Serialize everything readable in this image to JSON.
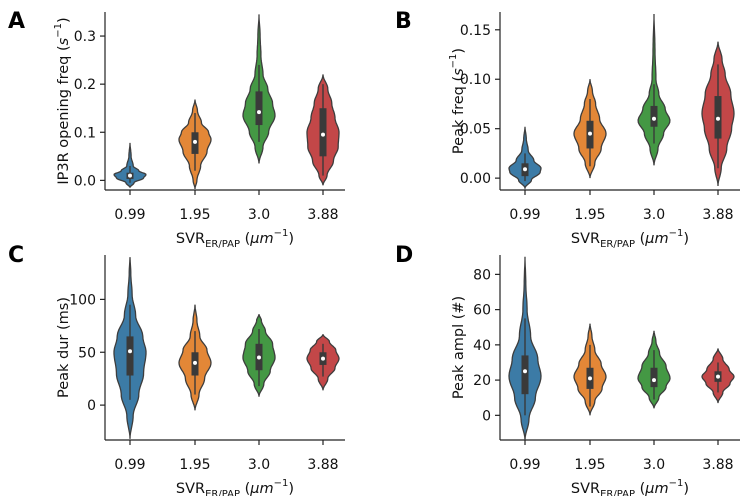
{
  "colors": [
    "#3274a1",
    "#e1812c",
    "#3a923a",
    "#c03d3e"
  ],
  "categories": [
    "0.99",
    "1.95",
    "3.0",
    "3.88"
  ],
  "panels": [
    {
      "letter": "A",
      "ylabel_pre": "IP3R opening freq (",
      "ylabel_unit": "s",
      "ylabel_sup": "−1",
      "ylabel_post": ")",
      "xlabel_main": "SVR",
      "xlabel_sub": "ER/PAP",
      "xlabel_unit": "μm",
      "xlabel_sup": "−1"
    },
    {
      "letter": "B",
      "ylabel_pre": "Peak freq (",
      "ylabel_unit": "s",
      "ylabel_sup": "−1",
      "ylabel_post": ")",
      "xlabel_main": "SVR",
      "xlabel_sub": "ER/PAP",
      "xlabel_unit": "μm",
      "xlabel_sup": "−1"
    },
    {
      "letter": "C",
      "ylabel_pre": "Peak dur (ms)",
      "ylabel_unit": "",
      "ylabel_sup": "",
      "ylabel_post": "",
      "xlabel_main": "SVR",
      "xlabel_sub": "ER/PAP",
      "xlabel_unit": "μm",
      "xlabel_sup": "−1"
    },
    {
      "letter": "D",
      "ylabel_pre": "Peak ampl (#)",
      "ylabel_unit": "",
      "ylabel_sup": "",
      "ylabel_post": "",
      "xlabel_main": "SVR",
      "xlabel_sub": "ER/PAP",
      "xlabel_unit": "μm",
      "xlabel_sup": "−1"
    }
  ],
  "chart_data": [
    {
      "type": "violin",
      "panel": "A",
      "ylabel": "IP3R opening freq (s^-1)",
      "xlabel": "SVR_ER/PAP (μm^-1)",
      "categories": [
        "0.99",
        "1.95",
        "3.0",
        "3.88"
      ],
      "yticks": [
        "0.0",
        "0.1",
        "0.2",
        "0.3"
      ],
      "ytick_values": [
        0,
        0.1,
        0.2,
        0.3
      ],
      "ylim": [
        -0.02,
        0.35
      ],
      "violins": [
        {
          "min": -0.015,
          "max": 0.078,
          "q1": 0.003,
          "median": 0.01,
          "q3": 0.016,
          "wlo": -0.005,
          "whi": 0.03,
          "profile": [
            [
              -0.015,
              0.0
            ],
            [
              -0.005,
              0.25
            ],
            [
              0.005,
              0.85
            ],
            [
              0.012,
              1.0
            ],
            [
              0.02,
              0.55
            ],
            [
              0.03,
              0.2
            ],
            [
              0.05,
              0.07
            ],
            [
              0.078,
              0.0
            ]
          ]
        },
        {
          "min": -0.018,
          "max": 0.168,
          "q1": 0.055,
          "median": 0.08,
          "q3": 0.1,
          "wlo": 0.02,
          "whi": 0.14,
          "profile": [
            [
              -0.018,
              0.0
            ],
            [
              0.0,
              0.12
            ],
            [
              0.03,
              0.35
            ],
            [
              0.06,
              0.75
            ],
            [
              0.085,
              1.0
            ],
            [
              0.1,
              0.85
            ],
            [
              0.12,
              0.4
            ],
            [
              0.145,
              0.15
            ],
            [
              0.168,
              0.0
            ]
          ]
        },
        {
          "min": 0.035,
          "max": 0.345,
          "q1": 0.115,
          "median": 0.142,
          "q3": 0.185,
          "wlo": 0.08,
          "whi": 0.24,
          "profile": [
            [
              0.035,
              0.0
            ],
            [
              0.07,
              0.25
            ],
            [
              0.1,
              0.6
            ],
            [
              0.135,
              1.0
            ],
            [
              0.16,
              0.85
            ],
            [
              0.19,
              0.55
            ],
            [
              0.22,
              0.25
            ],
            [
              0.26,
              0.12
            ],
            [
              0.3,
              0.07
            ],
            [
              0.345,
              0.0
            ]
          ]
        },
        {
          "min": -0.01,
          "max": 0.22,
          "q1": 0.05,
          "median": 0.095,
          "q3": 0.15,
          "wlo": 0.01,
          "whi": 0.2,
          "profile": [
            [
              -0.01,
              0.0
            ],
            [
              0.01,
              0.25
            ],
            [
              0.04,
              0.65
            ],
            [
              0.07,
              0.95
            ],
            [
              0.1,
              1.0
            ],
            [
              0.13,
              0.75
            ],
            [
              0.16,
              0.55
            ],
            [
              0.19,
              0.3
            ],
            [
              0.22,
              0.0
            ]
          ]
        }
      ]
    },
    {
      "type": "violin",
      "panel": "B",
      "ylabel": "Peak freq (s^-1)",
      "xlabel": "SVR_ER/PAP (μm^-1)",
      "categories": [
        "0.99",
        "1.95",
        "3.0",
        "3.88"
      ],
      "yticks": [
        "0.00",
        "0.05",
        "0.10",
        "0.15"
      ],
      "ytick_values": [
        0,
        0.05,
        0.1,
        0.15
      ],
      "ylim": [
        -0.012,
        0.168
      ],
      "violins": [
        {
          "min": -0.01,
          "max": 0.052,
          "q1": 0.002,
          "median": 0.009,
          "q3": 0.015,
          "wlo": -0.003,
          "whi": 0.025,
          "profile": [
            [
              -0.01,
              0.0
            ],
            [
              -0.002,
              0.4
            ],
            [
              0.006,
              0.95
            ],
            [
              0.01,
              1.0
            ],
            [
              0.018,
              0.55
            ],
            [
              0.028,
              0.2
            ],
            [
              0.04,
              0.08
            ],
            [
              0.052,
              0.0
            ]
          ]
        },
        {
          "min": 0.0,
          "max": 0.1,
          "q1": 0.03,
          "median": 0.045,
          "q3": 0.058,
          "wlo": 0.012,
          "whi": 0.08,
          "profile": [
            [
              0.0,
              0.0
            ],
            [
              0.015,
              0.3
            ],
            [
              0.03,
              0.7
            ],
            [
              0.045,
              1.0
            ],
            [
              0.06,
              0.6
            ],
            [
              0.075,
              0.35
            ],
            [
              0.088,
              0.15
            ],
            [
              0.1,
              0.0
            ]
          ]
        },
        {
          "min": 0.013,
          "max": 0.166,
          "q1": 0.052,
          "median": 0.06,
          "q3": 0.073,
          "wlo": 0.035,
          "whi": 0.095,
          "profile": [
            [
              0.013,
              0.0
            ],
            [
              0.03,
              0.25
            ],
            [
              0.045,
              0.6
            ],
            [
              0.058,
              1.0
            ],
            [
              0.07,
              0.7
            ],
            [
              0.085,
              0.3
            ],
            [
              0.1,
              0.12
            ],
            [
              0.13,
              0.06
            ],
            [
              0.166,
              0.0
            ]
          ]
        },
        {
          "min": -0.008,
          "max": 0.138,
          "q1": 0.04,
          "median": 0.06,
          "q3": 0.083,
          "wlo": 0.01,
          "whi": 0.115,
          "profile": [
            [
              -0.008,
              0.0
            ],
            [
              0.01,
              0.2
            ],
            [
              0.03,
              0.55
            ],
            [
              0.05,
              0.85
            ],
            [
              0.065,
              1.0
            ],
            [
              0.085,
              0.8
            ],
            [
              0.105,
              0.45
            ],
            [
              0.12,
              0.25
            ],
            [
              0.138,
              0.0
            ]
          ]
        }
      ]
    },
    {
      "type": "violin",
      "panel": "C",
      "ylabel": "Peak dur (ms)",
      "xlabel": "SVR_ER/PAP (μm^-1)",
      "categories": [
        "0.99",
        "1.95",
        "3.0",
        "3.88"
      ],
      "yticks": [
        "0",
        "50",
        "100"
      ],
      "ytick_values": [
        0,
        50,
        100
      ],
      "ylim": [
        -33,
        142
      ],
      "violins": [
        {
          "min": -32,
          "max": 140,
          "q1": 28,
          "median": 51,
          "q3": 65,
          "wlo": 5,
          "whi": 95,
          "profile": [
            [
              -32,
              0.0
            ],
            [
              -10,
              0.2
            ],
            [
              10,
              0.55
            ],
            [
              30,
              0.85
            ],
            [
              50,
              1.0
            ],
            [
              65,
              0.8
            ],
            [
              85,
              0.35
            ],
            [
              105,
              0.13
            ],
            [
              125,
              0.05
            ],
            [
              140,
              0.0
            ]
          ]
        },
        {
          "min": -5,
          "max": 95,
          "q1": 28,
          "median": 40,
          "q3": 50,
          "wlo": 10,
          "whi": 70,
          "profile": [
            [
              -5,
              0.0
            ],
            [
              10,
              0.25
            ],
            [
              25,
              0.6
            ],
            [
              40,
              1.0
            ],
            [
              52,
              0.75
            ],
            [
              65,
              0.3
            ],
            [
              80,
              0.12
            ],
            [
              95,
              0.0
            ]
          ]
        },
        {
          "min": 8,
          "max": 86,
          "q1": 33,
          "median": 45,
          "q3": 58,
          "wlo": 18,
          "whi": 72,
          "profile": [
            [
              8,
              0.0
            ],
            [
              20,
              0.3
            ],
            [
              32,
              0.7
            ],
            [
              45,
              1.0
            ],
            [
              58,
              0.85
            ],
            [
              70,
              0.4
            ],
            [
              80,
              0.15
            ],
            [
              86,
              0.0
            ]
          ]
        },
        {
          "min": 14,
          "max": 67,
          "q1": 38,
          "median": 44,
          "q3": 50,
          "wlo": 27,
          "whi": 58,
          "profile": [
            [
              14,
              0.0
            ],
            [
              25,
              0.3
            ],
            [
              35,
              0.75
            ],
            [
              44,
              1.0
            ],
            [
              52,
              0.8
            ],
            [
              60,
              0.4
            ],
            [
              67,
              0.0
            ]
          ]
        }
      ]
    },
    {
      "type": "violin",
      "panel": "D",
      "ylabel": "Peak ampl (#)",
      "xlabel": "SVR_ER/PAP (μm^-1)",
      "categories": [
        "0.99",
        "1.95",
        "3.0",
        "3.88"
      ],
      "yticks": [
        "0",
        "20",
        "40",
        "60",
        "80"
      ],
      "ytick_values": [
        0,
        20,
        40,
        60,
        80
      ],
      "ylim": [
        -14,
        91
      ],
      "violins": [
        {
          "min": -14,
          "max": 90,
          "q1": 12,
          "median": 25,
          "q3": 34,
          "wlo": 0,
          "whi": 55,
          "profile": [
            [
              -14,
              0.0
            ],
            [
              -2,
              0.25
            ],
            [
              10,
              0.65
            ],
            [
              22,
              1.0
            ],
            [
              32,
              0.8
            ],
            [
              45,
              0.35
            ],
            [
              60,
              0.13
            ],
            [
              75,
              0.05
            ],
            [
              90,
              0.0
            ]
          ]
        },
        {
          "min": 0,
          "max": 52,
          "q1": 15,
          "median": 21,
          "q3": 27,
          "wlo": 5,
          "whi": 40,
          "profile": [
            [
              0,
              0.0
            ],
            [
              8,
              0.3
            ],
            [
              15,
              0.75
            ],
            [
              22,
              1.0
            ],
            [
              29,
              0.7
            ],
            [
              37,
              0.3
            ],
            [
              45,
              0.12
            ],
            [
              52,
              0.0
            ]
          ]
        },
        {
          "min": 4,
          "max": 48,
          "q1": 16,
          "median": 20,
          "q3": 27,
          "wlo": 9,
          "whi": 37,
          "profile": [
            [
              4,
              0.0
            ],
            [
              10,
              0.3
            ],
            [
              16,
              0.75
            ],
            [
              21,
              1.0
            ],
            [
              28,
              0.75
            ],
            [
              35,
              0.35
            ],
            [
              42,
              0.12
            ],
            [
              48,
              0.0
            ]
          ]
        },
        {
          "min": 7,
          "max": 38,
          "q1": 19,
          "median": 22,
          "q3": 25,
          "wlo": 13,
          "whi": 30,
          "profile": [
            [
              7,
              0.0
            ],
            [
              13,
              0.3
            ],
            [
              18,
              0.75
            ],
            [
              22,
              1.0
            ],
            [
              26,
              0.7
            ],
            [
              32,
              0.3
            ],
            [
              38,
              0.0
            ]
          ]
        }
      ]
    }
  ]
}
